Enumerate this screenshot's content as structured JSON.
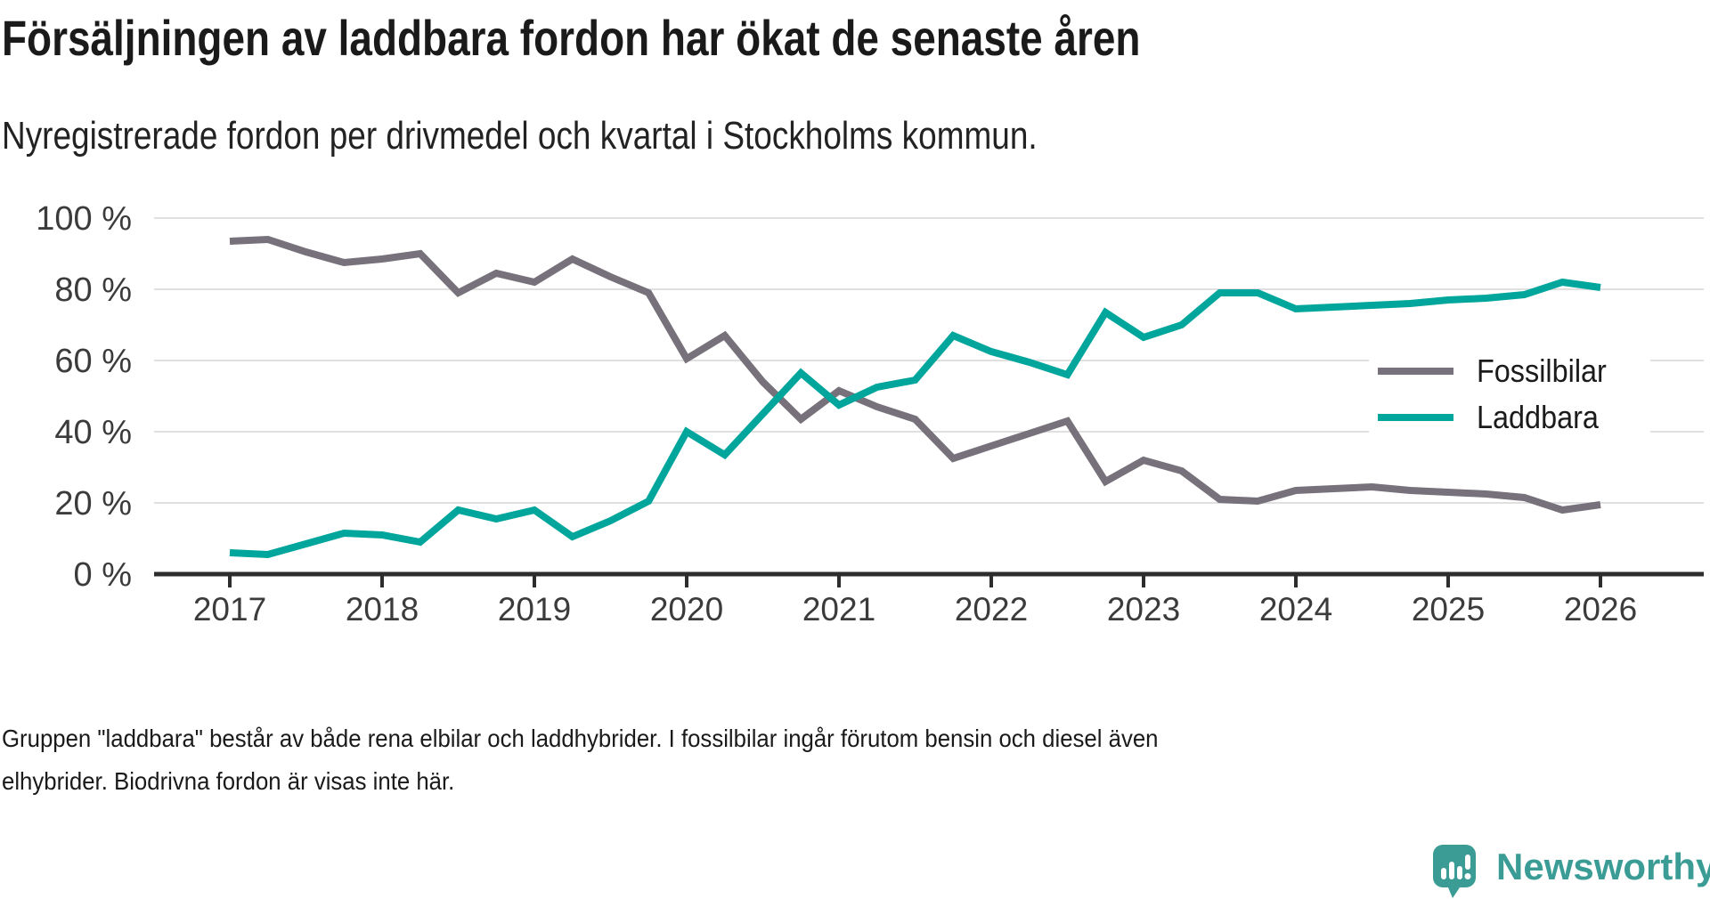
{
  "title": "Försäljningen av laddbara fordon har ökat de senaste åren",
  "subtitle": "Nyregistrerade fordon per drivmedel och kvartal i Stockholms kommun.",
  "footer": {
    "line1": "Gruppen \"laddbara\" består av både rena elbilar och laddhybrider. I fossilbilar ingår förutom bensin och diesel även",
    "line2": "elhybrider. Biodrivna fordon är visas inte här."
  },
  "legend": {
    "items": [
      {
        "label": "Fossilbilar",
        "color": "#76717A"
      },
      {
        "label": "Laddbara",
        "color": "#00A69C"
      }
    ]
  },
  "logo": {
    "text": "Newsworthy",
    "color": "#3A9C95"
  },
  "colors": {
    "background": "#ffffff",
    "title_text": "#1a1a1a",
    "gridline": "#e0e0e0",
    "axis_line": "#2d2d2d",
    "axis_label": "#3b3b3b",
    "fossil_line": "#76717A",
    "laddbara_line": "#00A69C"
  },
  "chart_data": {
    "type": "line",
    "title": "Försäljningen av laddbara fordon har ökat de senaste åren",
    "subtitle": "Nyregistrerade fordon per drivmedel och kvartal i Stockholms kommun.",
    "xlabel": "",
    "ylabel": "",
    "x_unit": "quarter",
    "x_start_year": 2017,
    "x_step_years": 0.25,
    "xlim": [
      2017,
      2026
    ],
    "ylim": [
      0,
      100
    ],
    "grid": "horizontal",
    "legend_position": "right-inside",
    "yticks": [
      0,
      20,
      40,
      60,
      80,
      100
    ],
    "ytick_suffix": " %",
    "year_ticks": [
      "2017",
      "2018",
      "2019",
      "2020",
      "2021",
      "2022",
      "2023",
      "2024",
      "2025",
      "2026"
    ],
    "series": [
      {
        "name": "Fossilbilar",
        "color": "#76717A",
        "values": [
          93.5,
          94,
          90.5,
          87.5,
          88.5,
          90,
          79,
          84.5,
          82,
          88.5,
          83.5,
          79,
          60.5,
          67,
          54,
          43.5,
          51.5,
          47,
          43.5,
          32.5,
          36,
          39.5,
          43,
          26,
          32,
          29,
          21,
          20.5,
          23.5,
          24,
          24.5,
          23.5,
          23,
          22.5,
          21.5,
          18,
          19.5
        ]
      },
      {
        "name": "Laddbara",
        "color": "#00A69C",
        "values": [
          6,
          5.5,
          8.5,
          11.5,
          11,
          9,
          18,
          15.5,
          18,
          10.5,
          15,
          20.5,
          40,
          33.5,
          45,
          56.5,
          47.5,
          52.5,
          54.5,
          67,
          62.5,
          59.5,
          56,
          73.5,
          66.5,
          70,
          79,
          79,
          74.5,
          75,
          75.5,
          76,
          77,
          77.5,
          78.5,
          82,
          80.5
        ]
      }
    ]
  }
}
